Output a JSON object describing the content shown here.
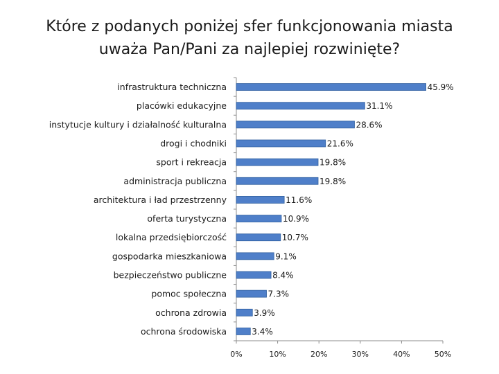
{
  "title": {
    "line1": "Które z podanych poniżej sfer funkcjonowania miasta",
    "line2": "uważa Pan/Pani za najlepiej rozwinięte?"
  },
  "colors": {
    "bar_fill": "#4f7fc9",
    "bar_edge": "#2f5f9f",
    "axis": "#8c8c8c"
  },
  "chart_data": {
    "type": "bar",
    "orientation": "horizontal",
    "categories": [
      "infrastruktura techniczna",
      "placówki edukacyjne",
      "instytucje kultury i działalność kulturalna",
      "drogi i chodniki",
      "sport i rekreacja",
      "administracja publiczna",
      "architektura i ład przestrzenny",
      "oferta turystyczna",
      "lokalna przedsiębiorczość",
      "gospodarka mieszkaniowa",
      "bezpieczeństwo publiczne",
      "pomoc społeczna",
      "ochrona zdrowia",
      "ochrona środowiska"
    ],
    "values": [
      45.9,
      31.1,
      28.6,
      21.6,
      19.8,
      19.8,
      11.6,
      10.9,
      10.7,
      9.1,
      8.4,
      7.3,
      3.9,
      3.4
    ],
    "data_labels": [
      "45.9%",
      "31.1%",
      "28.6%",
      "21.6%",
      "19.8%",
      "19.8%",
      "11.6%",
      "10.9%",
      "10.7%",
      "9.1%",
      "8.4%",
      "7.3%",
      "3.9%",
      "3.4%"
    ],
    "xlim": [
      0,
      50
    ],
    "xticks": [
      0,
      10,
      20,
      30,
      40,
      50
    ],
    "xtick_labels": [
      "0%",
      "10%",
      "20%",
      "30%",
      "40%",
      "50%"
    ],
    "grid": false,
    "legend": "none",
    "xlabel": "",
    "ylabel": ""
  }
}
